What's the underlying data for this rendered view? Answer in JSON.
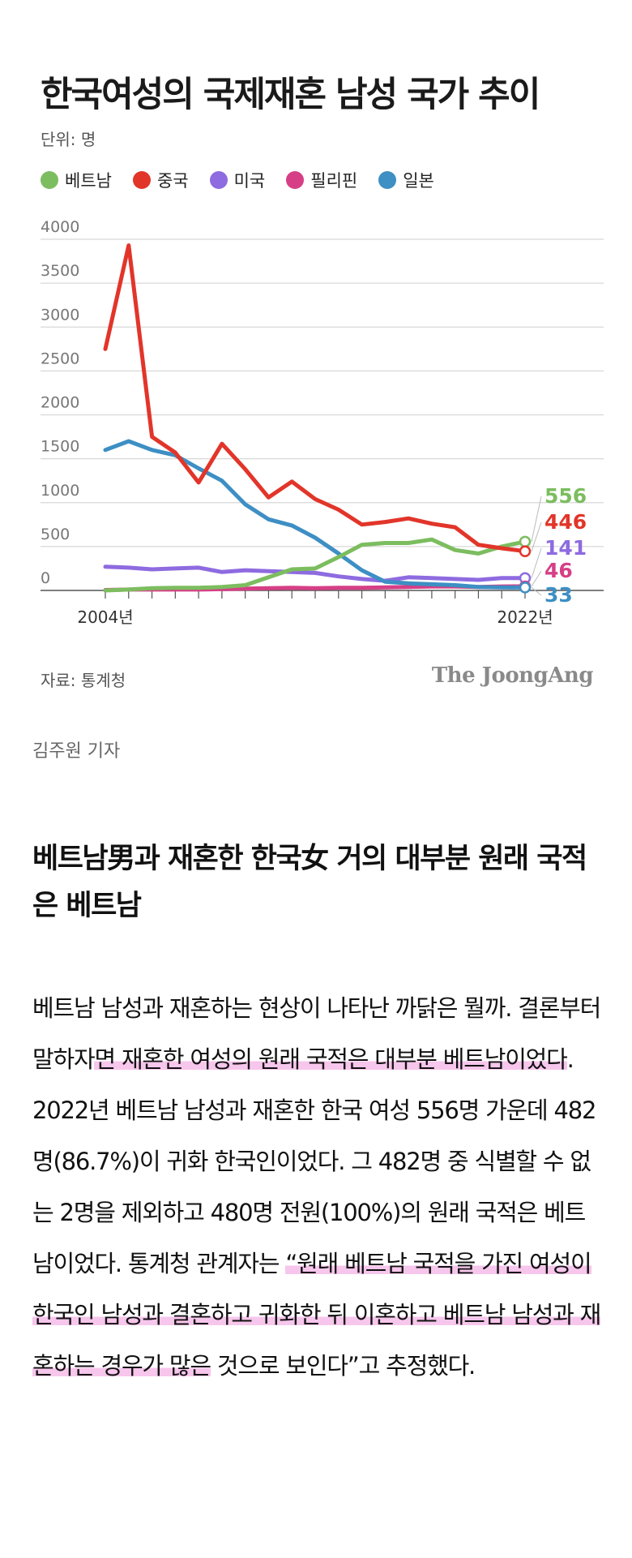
{
  "chart_data": {
    "type": "line",
    "title": "한국여성의 국제재혼 남성 국가 추이",
    "unit_label": "단위: 명",
    "x": [
      2004,
      2005,
      2006,
      2007,
      2008,
      2009,
      2010,
      2011,
      2012,
      2013,
      2014,
      2015,
      2016,
      2017,
      2018,
      2019,
      2020,
      2021,
      2022
    ],
    "x_tick_labels": [
      "2004년",
      "2022년"
    ],
    "ylim": [
      0,
      4000
    ],
    "y_ticks": [
      0,
      500,
      1000,
      1500,
      2000,
      2500,
      3000,
      3500,
      4000
    ],
    "series": [
      {
        "name": "베트남",
        "color": "#7cbd5f",
        "values": [
          0,
          10,
          25,
          30,
          30,
          40,
          60,
          150,
          240,
          250,
          380,
          520,
          540,
          540,
          580,
          460,
          420,
          500,
          556
        ],
        "end_label": "556"
      },
      {
        "name": "중국",
        "color": "#e2352a",
        "values": [
          2750,
          3930,
          1750,
          1570,
          1230,
          1670,
          1380,
          1060,
          1240,
          1040,
          920,
          750,
          780,
          820,
          760,
          720,
          520,
          480,
          446
        ],
        "end_label": "446"
      },
      {
        "name": "미국",
        "color": "#8e6be0",
        "values": [
          270,
          260,
          240,
          250,
          260,
          210,
          230,
          220,
          210,
          200,
          160,
          130,
          110,
          150,
          140,
          130,
          120,
          140,
          141
        ],
        "end_label": "141"
      },
      {
        "name": "필리핀",
        "color": "#d63f86",
        "values": [
          5,
          10,
          10,
          10,
          10,
          15,
          20,
          25,
          30,
          25,
          30,
          30,
          35,
          40,
          45,
          45,
          40,
          45,
          46
        ],
        "end_label": "46"
      },
      {
        "name": "일본",
        "color": "#3d8fc4",
        "values": [
          1600,
          1700,
          1600,
          1540,
          1390,
          1250,
          980,
          810,
          740,
          600,
          420,
          230,
          100,
          80,
          70,
          60,
          40,
          35,
          33
        ],
        "end_label": "33"
      }
    ],
    "grid": true
  },
  "source": "자료: 통계청",
  "brand": "The JoongAng",
  "reporter": "김주원 기자",
  "subhead": "베트남男과 재혼한 한국女 거의 대부분 원래 국적은 베트남",
  "body": {
    "p1": "베트남 남성과 재혼하는 현상이 나타난 까닭은 뭘까. 결론부터 말하자",
    "p2": "면 재혼한 여성의 원래 국적은 대부분 베트남이었다",
    "p3": ". 2022년 베트남 남성과 재혼한 한국 여성 556명 가운데 482명(86.7%)이 귀화 한국인이었다. 그 482명 중 식별할 수 없는 2명을 제외하고 480명 전원(100%)의 원래 국적은 베트남이었다. 통계청 관계자는 ",
    "p4": "“원래 베트남 국적을 가진 여성이 한국인 남성과 결혼하고 귀화한 뒤 이혼하고 베트남 남성과 재혼하는 경우가 많은",
    "p5": " 것으로 보인다”고 추정했다."
  }
}
